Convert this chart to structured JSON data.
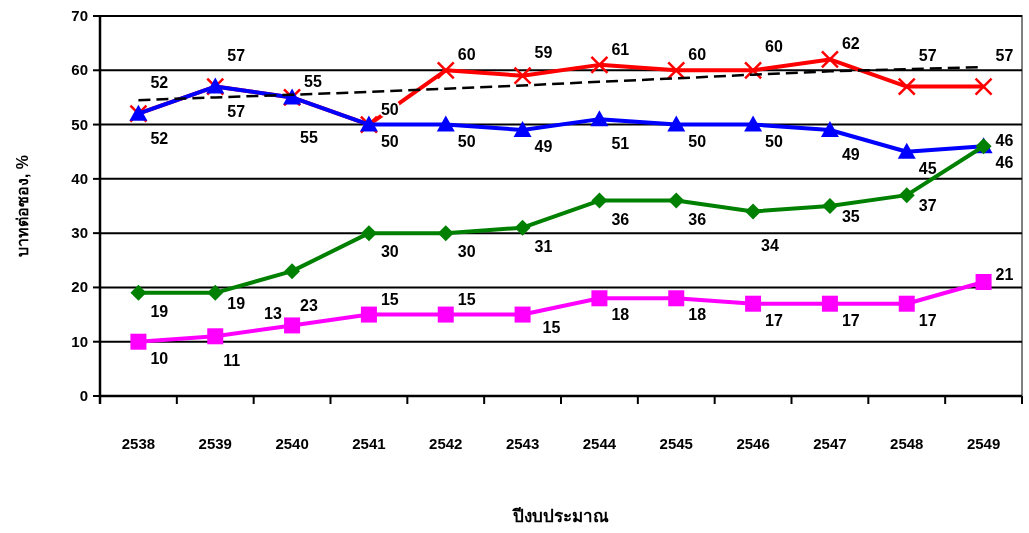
{
  "chart_data": {
    "type": "line",
    "xlabel": "ปีงบประมาณ",
    "ylabel": "บาทต่อซอง, %",
    "categories": [
      "2538",
      "2539",
      "2540",
      "2541",
      "2542",
      "2543",
      "2544",
      "2545",
      "2546",
      "2547",
      "2548",
      "2549"
    ],
    "ylim": [
      0,
      70
    ],
    "yticks": [
      0,
      10,
      20,
      30,
      40,
      50,
      60,
      70
    ],
    "grid": "y",
    "series": [
      {
        "color": "#ff0000",
        "marker": "cross",
        "values": [
          52,
          57,
          55,
          50,
          60,
          59,
          61,
          60,
          60,
          62,
          57,
          57
        ],
        "value_labels": [
          "52",
          "57",
          "55",
          "50",
          "60",
          "59",
          "61",
          "60",
          "60",
          "62",
          "57",
          "57"
        ]
      },
      {
        "color": "#0000ff",
        "marker": "triangle",
        "values": [
          52,
          57,
          55,
          50,
          50,
          49,
          51,
          50,
          50,
          49,
          45,
          46
        ],
        "value_labels": [
          "52",
          "57",
          "55",
          "50",
          "50",
          "49",
          "51",
          "50",
          "50",
          "49",
          "45",
          "46"
        ]
      },
      {
        "color": "#008000",
        "marker": "diamond",
        "values": [
          19,
          19,
          23,
          30,
          30,
          31,
          36,
          36,
          34,
          35,
          37,
          46
        ],
        "value_labels": [
          "19",
          "19",
          "23",
          "30",
          "30",
          "31",
          "36",
          "36",
          "34",
          "35",
          "37",
          "46"
        ]
      },
      {
        "color": "#ff00ff",
        "marker": "square",
        "values": [
          10,
          11,
          13,
          15,
          15,
          15,
          18,
          18,
          17,
          17,
          17,
          21
        ],
        "value_labels": [
          "10",
          "11",
          "13",
          "15",
          "15",
          "15",
          "18",
          "18",
          "17",
          "17",
          "17",
          "21"
        ]
      },
      {
        "color": "#000000",
        "marker": "none",
        "line_style": "dashed",
        "values": [
          54.5,
          55,
          55.5,
          56,
          56.6,
          57.2,
          57.9,
          58.5,
          59.2,
          59.8,
          60.2,
          60.6
        ]
      }
    ]
  }
}
